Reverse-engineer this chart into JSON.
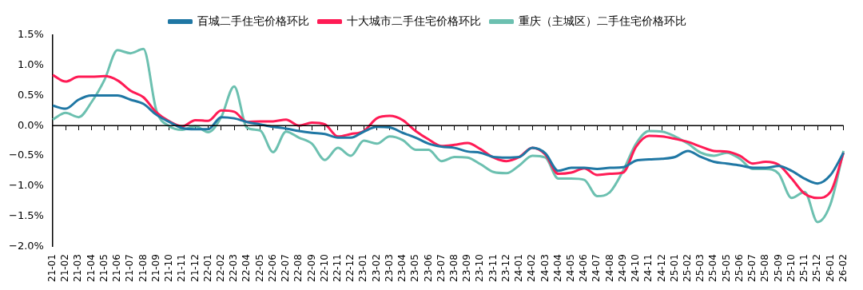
{
  "chart_data": {
    "type": "line",
    "categories": [
      "21-01",
      "21-02",
      "21-03",
      "21-04",
      "21-05",
      "21-06",
      "21-07",
      "21-08",
      "21-09",
      "21-10",
      "21-11",
      "21-12",
      "22-01",
      "22-02",
      "22-03",
      "22-04",
      "22-05",
      "22-06",
      "22-07",
      "22-08",
      "22-09",
      "22-10",
      "22-11",
      "22-12",
      "23-01",
      "23-02",
      "23-03",
      "23-04",
      "23-05",
      "23-06",
      "23-07",
      "23-08",
      "23-09",
      "23-10",
      "23-11",
      "23-12",
      "24-01",
      "24-02",
      "24-03",
      "24-04",
      "24-05",
      "24-06",
      "24-07",
      "24-08",
      "24-09",
      "24-10",
      "24-11",
      "24-12",
      "25-01",
      "25-02",
      "25-03",
      "25-04",
      "25-05",
      "25-06",
      "25-07",
      "25-08",
      "25-09",
      "25-10",
      "25-11",
      "25-12",
      "26-01",
      "26-02"
    ],
    "series": [
      {
        "name": "百城二手住宅价格环比",
        "color": "#1f77a4",
        "values": [
          0.33,
          0.28,
          0.43,
          0.5,
          0.5,
          0.5,
          0.43,
          0.36,
          0.18,
          0.06,
          -0.04,
          -0.06,
          -0.06,
          0.14,
          0.12,
          0.06,
          0.02,
          -0.02,
          -0.05,
          -0.09,
          -0.12,
          -0.14,
          -0.2,
          -0.2,
          -0.1,
          -0.02,
          -0.03,
          -0.12,
          -0.2,
          -0.3,
          -0.35,
          -0.37,
          -0.43,
          -0.45,
          -0.52,
          -0.53,
          -0.52,
          -0.37,
          -0.46,
          -0.75,
          -0.7,
          -0.7,
          -0.72,
          -0.7,
          -0.69,
          -0.58,
          -0.56,
          -0.55,
          -0.52,
          -0.42,
          -0.52,
          -0.6,
          -0.63,
          -0.66,
          -0.7,
          -0.7,
          -0.67,
          -0.75,
          -0.88,
          -0.96,
          -0.82,
          -0.45
        ]
      },
      {
        "name": "十大城市二手住宅价格环比",
        "color": "#ff1b55",
        "values": [
          0.84,
          0.73,
          0.81,
          0.81,
          0.82,
          0.75,
          0.58,
          0.47,
          0.22,
          0.07,
          -0.01,
          0.09,
          0.08,
          0.25,
          0.23,
          0.06,
          0.07,
          0.07,
          0.1,
          0.0,
          0.05,
          0.02,
          -0.18,
          -0.14,
          -0.09,
          0.12,
          0.16,
          0.09,
          -0.09,
          -0.23,
          -0.34,
          -0.32,
          -0.29,
          -0.39,
          -0.53,
          -0.59,
          -0.52,
          -0.37,
          -0.48,
          -0.8,
          -0.78,
          -0.71,
          -0.82,
          -0.8,
          -0.78,
          -0.35,
          -0.17,
          -0.18,
          -0.22,
          -0.27,
          -0.35,
          -0.42,
          -0.43,
          -0.5,
          -0.63,
          -0.6,
          -0.65,
          -0.88,
          -1.13,
          -1.2,
          -1.1,
          -0.45
        ]
      },
      {
        "name": "重庆（主城区）二手住宅价格环比",
        "color": "#6cc0b0",
        "values": [
          0.1,
          0.21,
          0.14,
          0.39,
          0.76,
          1.25,
          1.2,
          1.27,
          0.25,
          -0.01,
          -0.07,
          -0.01,
          -0.11,
          0.14,
          0.65,
          -0.04,
          -0.08,
          -0.44,
          -0.1,
          -0.2,
          -0.3,
          -0.57,
          -0.37,
          -0.5,
          -0.25,
          -0.3,
          -0.18,
          -0.24,
          -0.4,
          -0.4,
          -0.59,
          -0.52,
          -0.53,
          -0.64,
          -0.77,
          -0.79,
          -0.66,
          -0.5,
          -0.53,
          -0.88,
          -0.88,
          -0.9,
          -1.17,
          -1.1,
          -0.75,
          -0.3,
          -0.09,
          -0.1,
          -0.18,
          -0.3,
          -0.45,
          -0.5,
          -0.45,
          -0.55,
          -0.72,
          -0.72,
          -0.8,
          -1.2,
          -1.1,
          -1.6,
          -1.3,
          -0.42
        ]
      }
    ],
    "ylim": [
      -2.0,
      1.5
    ],
    "yticks": [
      {
        "value": -2.0,
        "label": "−2.0%"
      },
      {
        "value": -1.5,
        "label": "−1.5%"
      },
      {
        "value": -1.0,
        "label": "−1.0%"
      },
      {
        "value": -0.5,
        "label": "−0.5%"
      },
      {
        "value": 0.0,
        "label": "0.0%"
      },
      {
        "value": 0.5,
        "label": "0.5%"
      },
      {
        "value": 1.0,
        "label": "1.0%"
      },
      {
        "value": 1.5,
        "label": "1.5%"
      }
    ],
    "ref_lines": [
      {
        "axis": "y",
        "value": 0,
        "color": "#000000"
      }
    ],
    "grid": false,
    "legend": "top",
    "marker": "none",
    "line_style": "solid"
  }
}
